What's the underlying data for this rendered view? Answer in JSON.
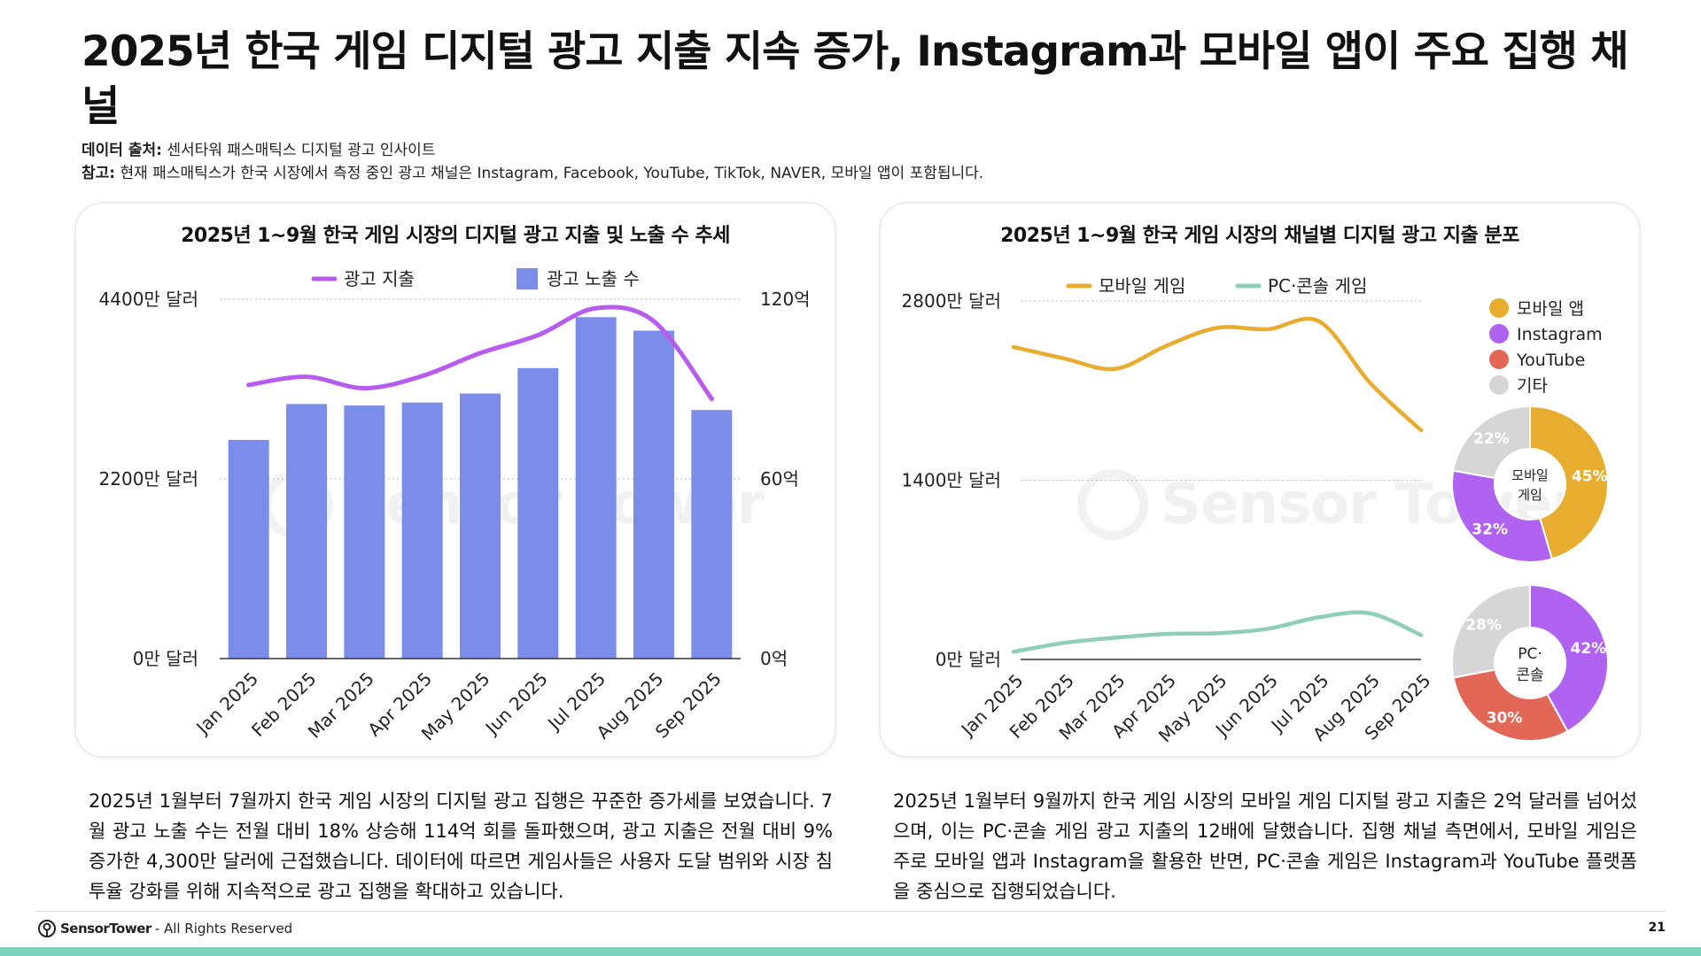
{
  "title": "2025년 한국 게임 디지털 광고 지출 지속 증가, Instagram과 모바일 앱이 주요 집행 채널",
  "source": {
    "data_label": "데이터 출처:",
    "data_text": " 센서타워 패스매틱스 디지털 광고 인사이트",
    "note_label": "참고:",
    "note_text": " 현재 패스매틱스가 한국 시장에서 측정 중인 광고 채널은 Instagram, Facebook, YouTube, TikTok, NAVER, 모바일 앱이 포함됩니다."
  },
  "watermark": "Sensor Tower",
  "colors": {
    "bar": "#7b8de8",
    "spend_line": "#b85cf0",
    "mobile_line": "#e8ac2f",
    "pc_line": "#8fcfb8",
    "pie_mobile_app": "#e8ac2f",
    "pie_instagram": "#b062f0",
    "pie_youtube": "#e36757",
    "pie_other": "#d6d6d6",
    "footer_bar": "#7dd3bd"
  },
  "chart_data": [
    {
      "type": "bar",
      "title": "2025년 1~9월 한국 게임 시장의 디지털 광고 지출 및 노출 수 추세",
      "categories": [
        "Jan 2025",
        "Feb 2025",
        "Mar 2025",
        "Apr 2025",
        "May 2025",
        "Jun 2025",
        "Jul 2025",
        "Aug 2025",
        "Sep 2025"
      ],
      "legend": [
        "광고 지출",
        "광고 노출 수"
      ],
      "left_axis": {
        "ticks": [
          "0만 달러",
          "2200만 달러",
          "4400만 달러"
        ],
        "range": [
          0,
          4400
        ]
      },
      "right_axis": {
        "ticks": [
          "0억",
          "60억",
          "120억"
        ],
        "range": [
          0,
          120
        ]
      },
      "series": [
        {
          "name": "광고 노출 수",
          "kind": "bar",
          "axis": "right",
          "values": [
            73,
            85,
            84.5,
            85.5,
            88.5,
            97,
            114,
            109.5,
            83
          ]
        },
        {
          "name": "광고 지출",
          "kind": "line",
          "axis": "left",
          "values": [
            3350,
            3450,
            3310,
            3460,
            3740,
            3960,
            4290,
            4130,
            3180
          ]
        }
      ],
      "grid": true,
      "legend_position": "top"
    },
    {
      "type": "line",
      "title": "2025년 1~9월 한국 게임 시장의 채널별 디지털 광고 지출 분포",
      "categories": [
        "Jan 2025",
        "Feb 2025",
        "Mar 2025",
        "Apr 2025",
        "May 2025",
        "Jun 2025",
        "Jul 2025",
        "Aug 2025",
        "Sep 2025"
      ],
      "y_axis": {
        "ticks": [
          "0만 달러",
          "1400만 달러",
          "2800만 달러"
        ],
        "range": [
          0,
          2800
        ]
      },
      "series": [
        {
          "name": "모바일 게임",
          "values": [
            2440,
            2350,
            2270,
            2450,
            2590,
            2580,
            2640,
            2160,
            1790
          ]
        },
        {
          "name": "PC·콘솔 게임",
          "values": [
            60,
            130,
            170,
            200,
            205,
            240,
            330,
            360,
            190
          ]
        }
      ],
      "grid": true,
      "legend_position": "top"
    },
    {
      "type": "pie",
      "label": "모바일 게임",
      "categories": [
        "모바일 앱",
        "Instagram",
        "YouTube",
        "기타"
      ],
      "values": [
        45,
        32,
        0,
        22
      ],
      "value_labels": [
        "45%",
        "32%",
        "",
        "22%"
      ]
    },
    {
      "type": "pie",
      "label": "PC·콘솔",
      "categories": [
        "모바일 앱",
        "Instagram",
        "YouTube",
        "기타"
      ],
      "values": [
        0,
        42,
        30,
        28
      ],
      "value_labels": [
        "",
        "42%",
        "30%",
        "28%"
      ]
    }
  ],
  "pie_legend": [
    "모바일 앱",
    "Instagram",
    "YouTube",
    "기타"
  ],
  "desc_left": "2025년 1월부터 7월까지 한국 게임 시장의 디지털 광고 집행은 꾸준한 증가세를 보였습니다. 7월 광고 노출 수는 전월 대비 18% 상승해 114억 회를 돌파했으며, 광고 지출은 전월 대비 9% 증가한 4,300만 달러에 근접했습니다. 데이터에 따르면 게임사들은 사용자 도달 범위와 시장 침투율 강화를 위해 지속적으로 광고 집행을 확대하고 있습니다.",
  "desc_right": "2025년 1월부터 9월까지 한국 게임 시장의 모바일 게임 디지털 광고 지출은 2억 달러를 넘어섰으며, 이는 PC·콘솔 게임 광고 지출의 12배에 달했습니다. 집행 채널 측면에서, 모바일 게임은 주로 모바일 앱과 Instagram을 활용한 반면, PC·콘솔 게임은 Instagram과 YouTube 플랫폼을 중심으로 집행되었습니다.",
  "footer": {
    "brand": "SensorTower",
    "rights": "- All Rights Reserved",
    "page": "21"
  }
}
